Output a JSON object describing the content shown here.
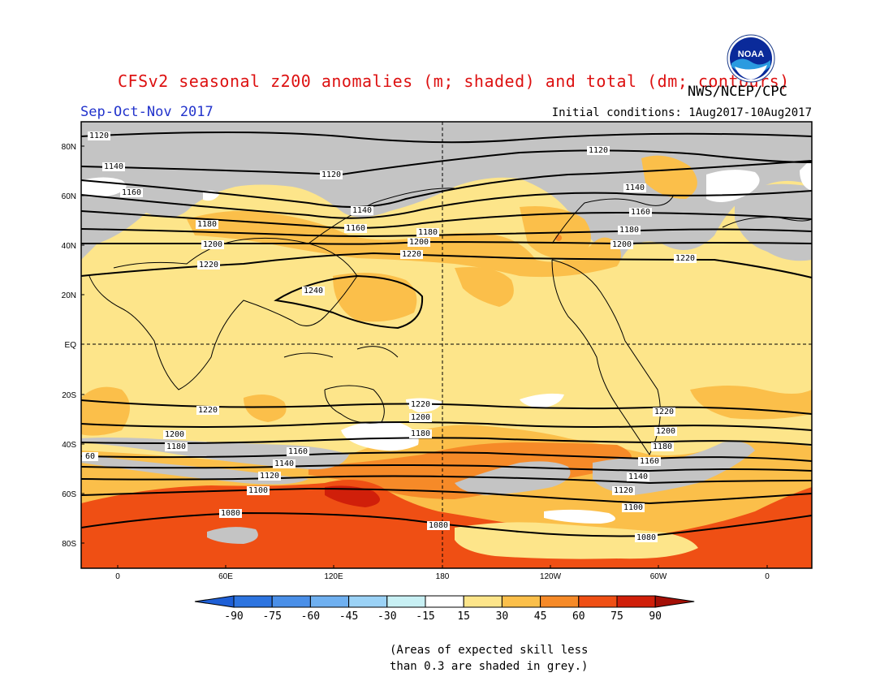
{
  "title": "CFSv2 seasonal z200 anomalies (m; shaded) and total (dm; contours)",
  "agency": "NWS/NCEP/CPC",
  "season": "Sep-Oct-Nov 2017",
  "initial_conditions": "Initial conditions: 1Aug2017-10Aug2017",
  "logo_text": "NOAA",
  "skill_note_line1": "(Areas of expected skill less",
  "skill_note_line2": "than 0.3 are shaded in grey.)",
  "map": {
    "lat_labels": [
      "80N",
      "60N",
      "40N",
      "20N",
      "EQ",
      "20S",
      "40S",
      "60S",
      "80S"
    ],
    "lon_labels": [
      "0",
      "60E",
      "120E",
      "180",
      "120W",
      "60W",
      "0"
    ],
    "colorbar": {
      "values": [
        "-90",
        "-75",
        "-60",
        "-45",
        "-30",
        "-15",
        "15",
        "30",
        "45",
        "60",
        "75",
        "90"
      ],
      "colors": [
        "#1e5fd6",
        "#2d74e0",
        "#4a8fe8",
        "#6fb0f0",
        "#9bd2f6",
        "#c8f0f4",
        "#ffffff",
        "#fde58a",
        "#fbbf4a",
        "#f68a28",
        "#ef4f14",
        "#d01f0a",
        "#a40f06"
      ]
    },
    "contour_labels": [
      "1120",
      "1120",
      "1120",
      "1140",
      "1140",
      "1140",
      "1160",
      "1160",
      "1160",
      "1180",
      "1180",
      "1180",
      "1200",
      "1200",
      "1200",
      "1220",
      "1220",
      "1220",
      "1240",
      "1220",
      "1200",
      "1180",
      "1160",
      "1140",
      "1120",
      "1100",
      "1080",
      "60",
      "1220",
      "1200",
      "1180",
      "1160",
      "1140",
      "1120",
      "1100",
      "1080",
      "1080"
    ]
  }
}
